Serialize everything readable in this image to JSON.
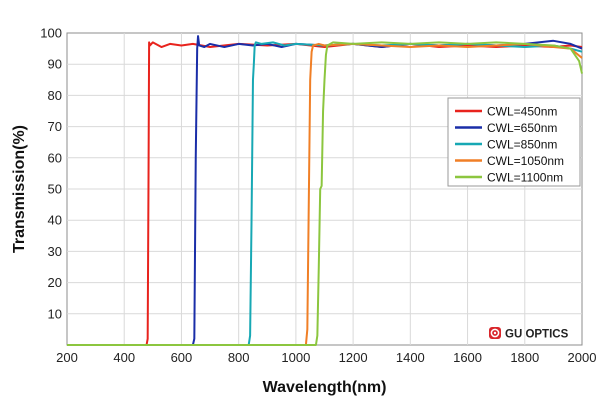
{
  "chart_data": {
    "type": "line",
    "xlabel": "Wavelength(nm)",
    "ylabel": "Transmission(%)",
    "xlim": [
      200,
      2000
    ],
    "ylim": [
      0,
      100
    ],
    "x_ticks": [
      200,
      400,
      600,
      800,
      1000,
      1200,
      1400,
      1600,
      1800,
      2000
    ],
    "y_ticks": [
      10,
      20,
      30,
      40,
      50,
      60,
      70,
      80,
      90,
      100
    ],
    "grid": true,
    "legend_position": "right",
    "series": [
      {
        "name": "CWL=450nm",
        "color": "#e8231d",
        "points": [
          [
            200,
            0
          ],
          [
            478,
            0
          ],
          [
            482,
            2
          ],
          [
            485,
            55
          ],
          [
            487,
            97
          ],
          [
            490,
            96
          ],
          [
            500,
            97
          ],
          [
            530,
            95.5
          ],
          [
            560,
            96.5
          ],
          [
            600,
            96
          ],
          [
            640,
            96.5
          ],
          [
            700,
            95.5
          ],
          [
            800,
            96.5
          ],
          [
            900,
            96
          ],
          [
            1000,
            96.5
          ],
          [
            1100,
            95.5
          ],
          [
            1200,
            96.5
          ],
          [
            1300,
            95.5
          ],
          [
            1400,
            96.5
          ],
          [
            1500,
            95.5
          ],
          [
            1600,
            96
          ],
          [
            1700,
            95.5
          ],
          [
            1800,
            96
          ],
          [
            1900,
            95.5
          ],
          [
            1960,
            96
          ],
          [
            2000,
            95.5
          ]
        ]
      },
      {
        "name": "CWL=650nm",
        "color": "#1a2ea8",
        "points": [
          [
            200,
            0
          ],
          [
            640,
            0
          ],
          [
            645,
            2
          ],
          [
            650,
            60
          ],
          [
            655,
            95
          ],
          [
            658,
            99
          ],
          [
            662,
            96
          ],
          [
            680,
            95.5
          ],
          [
            700,
            96.5
          ],
          [
            750,
            95.5
          ],
          [
            800,
            96.5
          ],
          [
            850,
            96
          ],
          [
            900,
            96.5
          ],
          [
            950,
            95.5
          ],
          [
            1000,
            96.5
          ],
          [
            1100,
            96
          ],
          [
            1200,
            96.5
          ],
          [
            1300,
            95.5
          ],
          [
            1400,
            96.5
          ],
          [
            1500,
            96
          ],
          [
            1600,
            96.5
          ],
          [
            1700,
            96
          ],
          [
            1800,
            96.5
          ],
          [
            1900,
            97.5
          ],
          [
            1960,
            96.5
          ],
          [
            2000,
            95
          ]
        ]
      },
      {
        "name": "CWL=850nm",
        "color": "#17a8b4",
        "points": [
          [
            200,
            0
          ],
          [
            835,
            0
          ],
          [
            840,
            3
          ],
          [
            845,
            40
          ],
          [
            850,
            85
          ],
          [
            853,
            90
          ],
          [
            856,
            96
          ],
          [
            860,
            97
          ],
          [
            880,
            96.5
          ],
          [
            920,
            97
          ],
          [
            960,
            96
          ],
          [
            1000,
            96.5
          ],
          [
            1100,
            96
          ],
          [
            1200,
            96.5
          ],
          [
            1300,
            96
          ],
          [
            1400,
            96.5
          ],
          [
            1500,
            96
          ],
          [
            1600,
            96.5
          ],
          [
            1700,
            96
          ],
          [
            1800,
            95.5
          ],
          [
            1900,
            96
          ],
          [
            1960,
            95
          ],
          [
            2000,
            94
          ]
        ]
      },
      {
        "name": "CWL=1050nm",
        "color": "#f07f26",
        "points": [
          [
            200,
            0
          ],
          [
            1035,
            0
          ],
          [
            1040,
            5
          ],
          [
            1045,
            45
          ],
          [
            1050,
            85
          ],
          [
            1055,
            94
          ],
          [
            1060,
            96
          ],
          [
            1080,
            96.5
          ],
          [
            1100,
            96
          ],
          [
            1200,
            96.5
          ],
          [
            1300,
            96
          ],
          [
            1400,
            95.5
          ],
          [
            1500,
            96
          ],
          [
            1600,
            95.5
          ],
          [
            1700,
            96
          ],
          [
            1800,
            96.5
          ],
          [
            1900,
            95.5
          ],
          [
            1960,
            95
          ],
          [
            2000,
            92
          ]
        ]
      },
      {
        "name": "CWL=1100nm",
        "color": "#8cc63f",
        "points": [
          [
            200,
            0
          ],
          [
            1070,
            0
          ],
          [
            1075,
            3
          ],
          [
            1080,
            25
          ],
          [
            1085,
            50
          ],
          [
            1090,
            51
          ],
          [
            1095,
            75
          ],
          [
            1100,
            85
          ],
          [
            1105,
            93
          ],
          [
            1110,
            96
          ],
          [
            1130,
            97
          ],
          [
            1200,
            96.5
          ],
          [
            1300,
            97
          ],
          [
            1400,
            96.5
          ],
          [
            1500,
            97
          ],
          [
            1600,
            96.5
          ],
          [
            1700,
            97
          ],
          [
            1800,
            96.5
          ],
          [
            1900,
            96
          ],
          [
            1960,
            95
          ],
          [
            1990,
            91
          ],
          [
            2000,
            87
          ]
        ]
      }
    ]
  },
  "brand": {
    "text": "GU OPTICS",
    "icon": "gu-optics-logo-icon",
    "color": "#d9262b"
  }
}
